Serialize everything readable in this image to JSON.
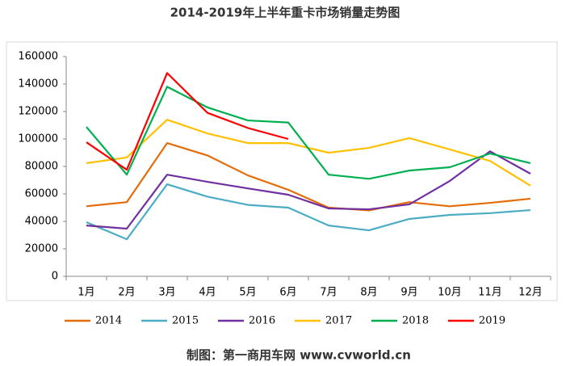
{
  "chart_data": {
    "type": "line",
    "title": "2014-2019年上半年重卡市场销量走势图",
    "source": "制图：第一商用车网 www.cvworld.cn",
    "categories": [
      "1月",
      "2月",
      "3月",
      "4月",
      "5月",
      "6月",
      "7月",
      "8月",
      "9月",
      "10月",
      "11月",
      "12月"
    ],
    "ylim": [
      0,
      160000
    ],
    "yticks": [
      0,
      20000,
      40000,
      60000,
      80000,
      100000,
      120000,
      140000,
      160000
    ],
    "legend": "bottom",
    "series": [
      {
        "name": "2014",
        "color": "#e46c0a",
        "values": [
          51000,
          54000,
          97000,
          88000,
          73500,
          63000,
          50000,
          48000,
          54000,
          51000,
          53500,
          56500
        ]
      },
      {
        "name": "2015",
        "color": "#4bacc6",
        "values": [
          39400,
          27000,
          67000,
          58000,
          52000,
          50000,
          37000,
          33500,
          41800,
          44700,
          46000,
          48200
        ]
      },
      {
        "name": "2016",
        "color": "#7030a0",
        "values": [
          37000,
          34700,
          74000,
          68800,
          64000,
          59400,
          49400,
          48800,
          52400,
          69400,
          91000,
          74700
        ]
      },
      {
        "name": "2017",
        "color": "#ffc000",
        "values": [
          82400,
          86500,
          114000,
          104000,
          97000,
          97000,
          90000,
          93500,
          100600,
          92400,
          84000,
          66000
        ]
      },
      {
        "name": "2018",
        "color": "#00b050",
        "values": [
          108800,
          74000,
          138000,
          123000,
          113500,
          112000,
          74000,
          71000,
          77000,
          79400,
          89400,
          82400
        ]
      },
      {
        "name": "2019",
        "color": "#ff0000",
        "values": [
          97600,
          77600,
          148000,
          119000,
          108000,
          100000,
          null,
          null,
          null,
          null,
          null,
          null
        ]
      }
    ]
  }
}
